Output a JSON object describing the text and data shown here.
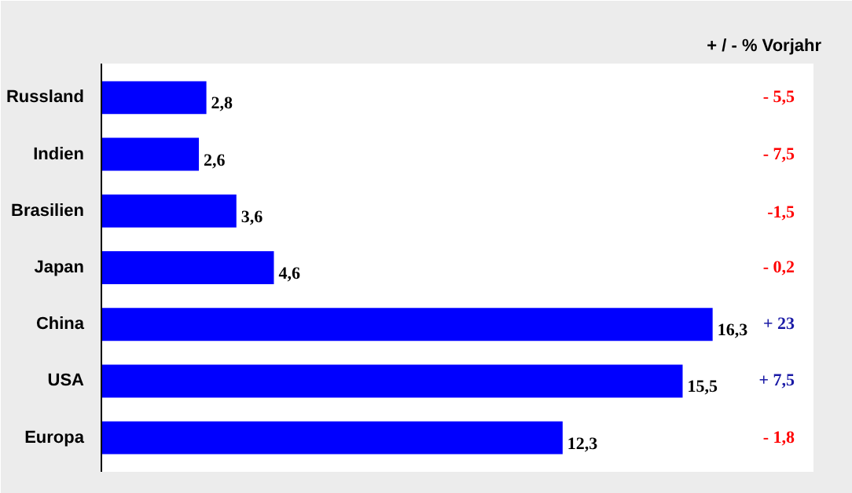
{
  "chart_data": {
    "type": "bar",
    "orientation": "horizontal",
    "title": "+ / - % Vorjahr",
    "categories": [
      "Russland",
      "Indien",
      "Brasilien",
      "Japan",
      "China",
      "USA",
      "Europa"
    ],
    "values": [
      2.8,
      2.6,
      3.6,
      4.6,
      16.3,
      15.5,
      12.3
    ],
    "value_labels": [
      "2,8",
      "2,6",
      "3,6",
      "4,6",
      "16,3",
      "15,5",
      "12,3"
    ],
    "color": "#0000ff",
    "tick_labels": "y",
    "annotations": [
      "- 5,5",
      "- 7,5",
      "-1,5",
      "- 0,2",
      "+ 23",
      "+ 7,5",
      "- 1,8"
    ]
  }
}
